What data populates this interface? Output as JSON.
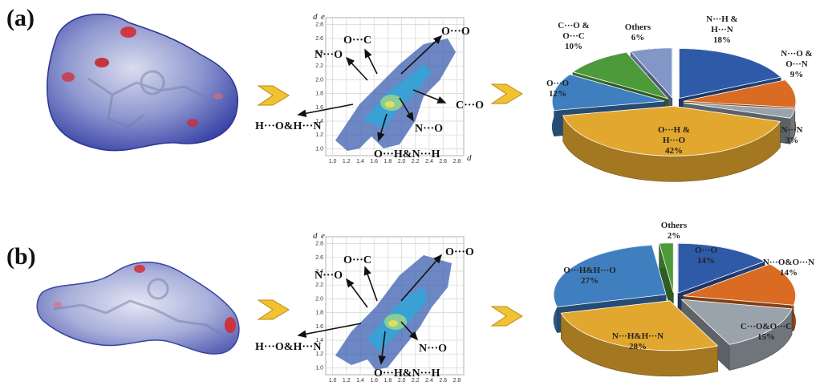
{
  "panels": [
    {
      "label": "(a)",
      "fingerprint": {
        "axis_symbol": "d",
        "x_ticks": [
          "1.0",
          "1.2",
          "1.4",
          "1.6",
          "1.8",
          "2.0",
          "2.2",
          "2.4",
          "2.6",
          "2.8"
        ],
        "y_ticks": [
          "1.0",
          "1.2",
          "1.4",
          "1.6",
          "1.8",
          "2.0",
          "2.2",
          "2.4",
          "2.6",
          "2.8"
        ],
        "labels": [
          "O···C",
          "O···O",
          "N···O",
          "C···O",
          "H···O&H···N",
          "N···O",
          "O···H&N···H"
        ]
      }
    },
    {
      "label": "(b)",
      "fingerprint": {
        "axis_symbol": "d",
        "x_ticks": [
          "1.0",
          "1.2",
          "1.4",
          "1.6",
          "1.8",
          "2.0",
          "2.2",
          "2.4",
          "2.6",
          "2.8"
        ],
        "y_ticks": [
          "1.0",
          "1.2",
          "1.4",
          "1.6",
          "1.8",
          "2.0",
          "2.2",
          "2.4",
          "2.6",
          "2.8"
        ],
        "labels": [
          "O···C",
          "O···O",
          "N···O",
          "H···O&H···N",
          "N···O",
          "O···H&N···H"
        ]
      }
    }
  ],
  "chart_data": [
    {
      "type": "pie",
      "panel": "(a)",
      "slices": [
        {
          "lines": [
            "N···H &",
            "H···N",
            "18%"
          ],
          "value": 18,
          "color": "#2f5aa8"
        },
        {
          "lines": [
            "N···O &",
            "O···N",
            "9%"
          ],
          "value": 9,
          "color": "#d96b22"
        },
        {
          "lines": [
            "N···N",
            "3%"
          ],
          "value": 3,
          "color": "#9aa3ab"
        },
        {
          "lines": [
            "O···H &",
            "H···O",
            "42%"
          ],
          "value": 42,
          "color": "#e2a72e"
        },
        {
          "lines": [
            "O···O",
            "12%"
          ],
          "value": 12,
          "color": "#3f7fc0"
        },
        {
          "lines": [
            "C···O &",
            "O···C",
            "10%"
          ],
          "value": 10,
          "color": "#4c9a3a"
        },
        {
          "lines": [
            "Others",
            "6%"
          ],
          "value": 6,
          "color": "#8296c8"
        }
      ]
    },
    {
      "type": "pie",
      "panel": "(b)",
      "slices": [
        {
          "lines": [
            "O···O",
            "14%"
          ],
          "value": 14,
          "color": "#2f5aa8"
        },
        {
          "lines": [
            "N···O&O···N",
            "14%"
          ],
          "value": 14,
          "color": "#d96b22"
        },
        {
          "lines": [
            "C···O&O···C",
            "15%"
          ],
          "value": 15,
          "color": "#9aa3ab"
        },
        {
          "lines": [
            "N···H&H···N",
            "28%"
          ],
          "value": 28,
          "color": "#e2a72e"
        },
        {
          "lines": [
            "O···H&H···O",
            "27%"
          ],
          "value": 27,
          "color": "#3f7fc0"
        },
        {
          "lines": [
            "Others",
            "2%"
          ],
          "value": 2,
          "color": "#4c9a3a"
        }
      ]
    }
  ]
}
